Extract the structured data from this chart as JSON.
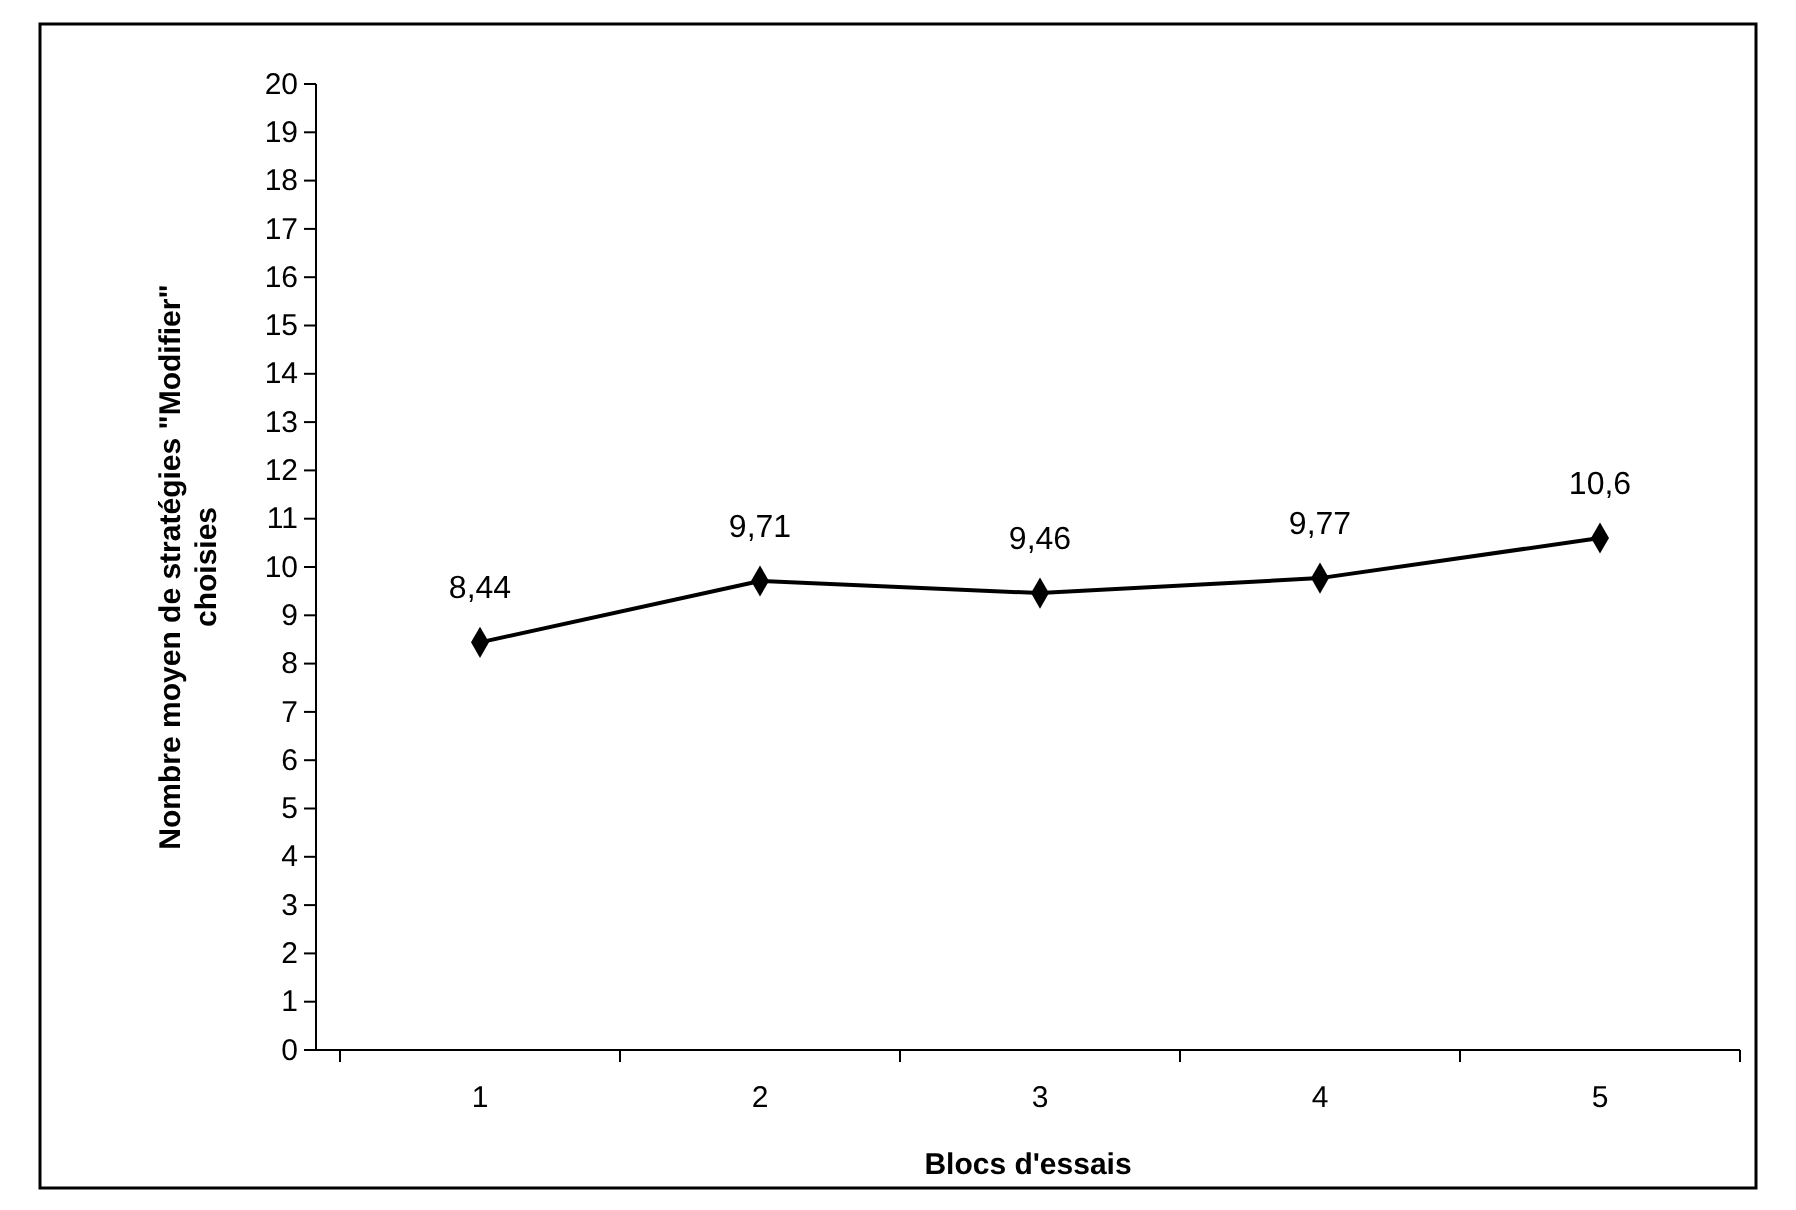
{
  "chart_data": {
    "type": "line",
    "xlabel": "Blocs d'essais",
    "ylabel": "Nombre moyen de stratégies \"Modifier\" choisies",
    "categories": [
      "1",
      "2",
      "3",
      "4",
      "5"
    ],
    "values": [
      8.44,
      9.71,
      9.46,
      9.77,
      10.6
    ],
    "value_labels": [
      "8,44",
      "9,71",
      "9,46",
      "9,77",
      "10,6"
    ],
    "color": "#000000",
    "marker": "diamond",
    "grid": false,
    "ylim": [
      0,
      20
    ],
    "yticks": [
      0,
      1,
      2,
      3,
      4,
      5,
      6,
      7,
      8,
      9,
      10,
      11,
      12,
      13,
      14,
      15,
      16,
      17,
      18,
      19,
      20
    ]
  }
}
